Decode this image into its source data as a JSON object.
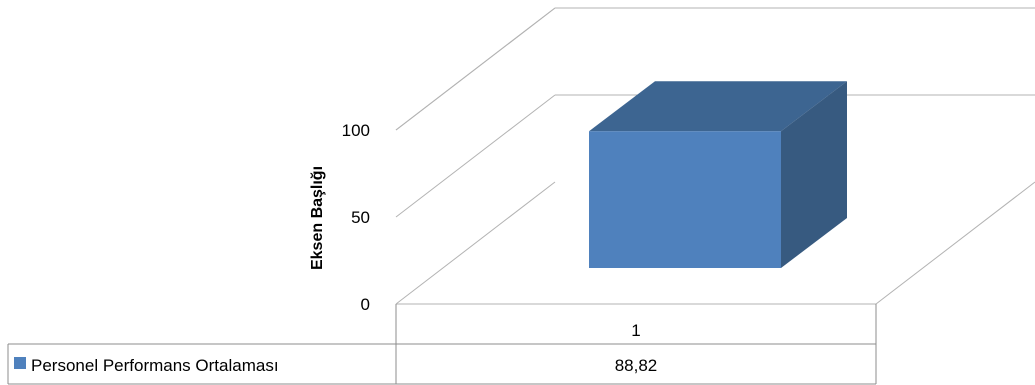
{
  "chart_data": {
    "type": "bar",
    "title": "",
    "xlabel": "",
    "ylabel": "Eksen Başlığı",
    "ylim": [
      0,
      100
    ],
    "yticks": [
      "0",
      "50",
      "100"
    ],
    "grid": true,
    "categories": [
      "1"
    ],
    "series": [
      {
        "name": "Personel Performans Ortalaması",
        "values": [
          88.82
        ],
        "value_labels": [
          "88,82"
        ]
      }
    ],
    "data_table": true,
    "colors": {
      "bar_front": "#4f81bd",
      "bar_top": "#3d6591",
      "bar_side": "#375a80",
      "legend_key": "#4f81bd"
    }
  }
}
